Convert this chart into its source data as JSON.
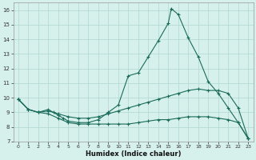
{
  "xlabel": "Humidex (Indice chaleur)",
  "xlim": [
    -0.5,
    23.5
  ],
  "ylim": [
    7,
    16.5
  ],
  "xticks": [
    0,
    1,
    2,
    3,
    4,
    5,
    6,
    7,
    8,
    9,
    10,
    11,
    12,
    13,
    14,
    15,
    16,
    17,
    18,
    19,
    20,
    21,
    22,
    23
  ],
  "yticks": [
    7,
    8,
    9,
    10,
    11,
    12,
    13,
    14,
    15,
    16
  ],
  "bg_color": "#d6f0ec",
  "grid_color": "#b0d8d0",
  "line_color": "#1a6b5a",
  "line1_x": [
    0,
    1,
    2,
    3,
    3.5,
    4,
    4.5,
    5,
    6,
    7,
    8,
    9,
    10,
    11,
    12,
    13,
    14,
    15,
    15.3,
    16,
    17,
    18,
    19,
    20,
    21,
    22,
    23
  ],
  "line1_y": [
    9.9,
    9.2,
    9.0,
    9.2,
    9.0,
    8.8,
    8.6,
    8.4,
    8.3,
    8.3,
    8.5,
    9.0,
    9.5,
    11.5,
    11.7,
    12.8,
    13.9,
    15.1,
    16.1,
    15.7,
    14.1,
    12.8,
    11.1,
    10.3,
    9.3,
    8.3,
    7.2
  ],
  "line2_x": [
    0,
    1,
    2,
    3,
    4,
    5,
    6,
    7,
    8,
    9,
    10,
    11,
    12,
    13,
    14,
    15,
    16,
    17,
    18,
    19,
    20,
    21,
    22,
    23
  ],
  "line2_y": [
    9.9,
    9.2,
    9.0,
    9.1,
    8.9,
    8.7,
    8.6,
    8.6,
    8.7,
    8.9,
    9.1,
    9.3,
    9.5,
    9.7,
    9.9,
    10.1,
    10.3,
    10.5,
    10.6,
    10.5,
    10.5,
    10.3,
    9.3,
    7.2
  ],
  "line3_x": [
    0,
    1,
    2,
    3,
    4,
    5,
    6,
    7,
    8,
    9,
    10,
    11,
    12,
    13,
    14,
    15,
    16,
    17,
    18,
    19,
    20,
    21,
    22,
    23
  ],
  "line3_y": [
    9.9,
    9.2,
    9.0,
    8.9,
    8.6,
    8.3,
    8.2,
    8.2,
    8.2,
    8.2,
    8.2,
    8.2,
    8.3,
    8.4,
    8.5,
    8.5,
    8.6,
    8.7,
    8.7,
    8.7,
    8.6,
    8.5,
    8.3,
    7.2
  ]
}
